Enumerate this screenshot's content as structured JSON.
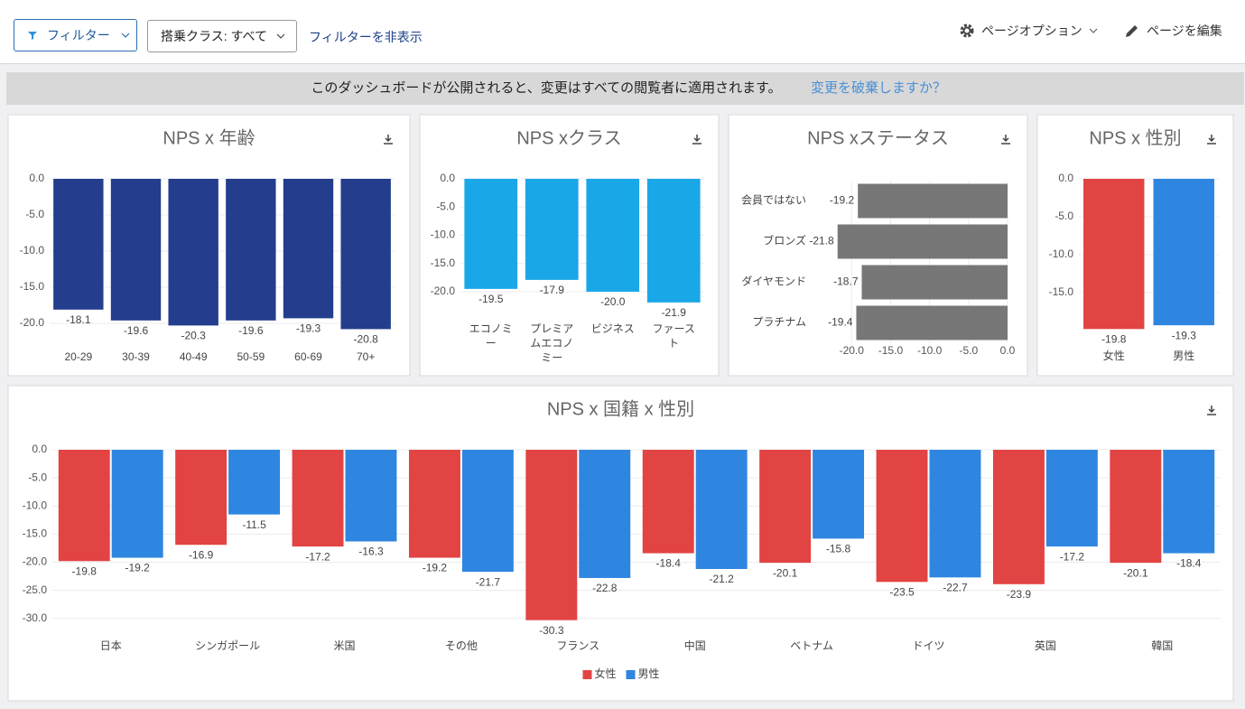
{
  "toolbar": {
    "filter": "フィルター",
    "class_filter": "搭乗クラス: すべて",
    "hide_filters": "フィルターを非表示",
    "page_options": "ページオプション",
    "edit_page": "ページを編集"
  },
  "banner": {
    "message": "このダッシュボードが公開されると、変更はすべての閲覧者に適用されます。",
    "link": "変更を破棄しますか？"
  },
  "chart_data": [
    {
      "type": "bar",
      "title": "NPS x 年齢",
      "categories": [
        "20-29",
        "30-39",
        "40-49",
        "50-59",
        "60-69",
        "70+"
      ],
      "values": [
        -18.1,
        -19.6,
        -20.3,
        -19.6,
        -19.3,
        -20.8
      ],
      "color": "#243d8c",
      "ylim": [
        -21,
        0
      ],
      "yticks": [
        {
          "value": 0,
          "label": "0.0"
        },
        {
          "value": -5,
          "label": "-5.0"
        },
        {
          "value": -10,
          "label": "-10.0"
        },
        {
          "value": -15,
          "label": "-15.0"
        },
        {
          "value": -20,
          "label": "-20.0"
        }
      ],
      "grid": true
    },
    {
      "type": "bar",
      "title": "NPS xクラス",
      "categories": [
        "エコノミー",
        "プレミアムエコノミー",
        "ビジネス",
        "ファースト"
      ],
      "values": [
        -19.5,
        -17.9,
        -20,
        -21.9
      ],
      "value_labels": [
        "-19.5",
        "-17.9",
        "-20.0",
        "-21.9"
      ],
      "color": "#1aa7e8",
      "ylim": [
        -22,
        0
      ],
      "yticks": [
        {
          "value": 0,
          "label": "0.0"
        },
        {
          "value": -5,
          "label": "-5.0"
        },
        {
          "value": -10,
          "label": "-10.0"
        },
        {
          "value": -15,
          "label": "-15.0"
        },
        {
          "value": -20,
          "label": "-20.0"
        }
      ],
      "grid": true
    },
    {
      "type": "barh",
      "title": "NPS xステータス",
      "categories": [
        "会員ではない",
        "ブロンズ",
        "ダイヤモンド",
        "プラチナム"
      ],
      "values": [
        -19.2,
        -21.8,
        -18.7,
        -19.4
      ],
      "color": "#777777",
      "xlim": [
        -22,
        0
      ],
      "xticks": [
        {
          "value": -20,
          "label": "-20.0"
        },
        {
          "value": -15,
          "label": "-15.0"
        },
        {
          "value": -10,
          "label": "-10.0"
        },
        {
          "value": -5,
          "label": "-5.0"
        },
        {
          "value": 0,
          "label": "0.0"
        }
      ],
      "grid": true
    },
    {
      "type": "bar",
      "title": "NPS x 性別",
      "categories": [
        "女性",
        "男性"
      ],
      "values": [
        -19.8,
        -19.3
      ],
      "colors": [
        "#e24343",
        "#2e86e0"
      ],
      "ylim": [
        -20,
        0
      ],
      "yticks": [
        {
          "value": 0,
          "label": "0.0"
        },
        {
          "value": -5,
          "label": "-5.0"
        },
        {
          "value": -10,
          "label": "-10.0"
        },
        {
          "value": -15,
          "label": "-15.0"
        }
      ],
      "grid": true
    },
    {
      "type": "grouped_bar",
      "title": "NPS x 国籍 x 性別",
      "categories": [
        "日本",
        "シンガポール",
        "米国",
        "その他",
        "フランス",
        "中国",
        "ベトナム",
        "ドイツ",
        "英国",
        "韓国"
      ],
      "series": [
        {
          "name": "女性",
          "color": "#e24343",
          "values": [
            -19.8,
            -16.9,
            -17.2,
            -19.2,
            -30.3,
            -18.4,
            -20.1,
            -23.5,
            -23.9,
            -20.1
          ]
        },
        {
          "name": "男性",
          "color": "#2e86e0",
          "values": [
            -19.2,
            -11.5,
            -16.3,
            -21.7,
            -22.8,
            -21.2,
            -15.8,
            -22.7,
            -17.2,
            -18.4
          ]
        }
      ],
      "ylim": [
        -31,
        0
      ],
      "yticks": [
        {
          "value": 0,
          "label": "0.0"
        },
        {
          "value": -5,
          "label": "-5.0"
        },
        {
          "value": -10,
          "label": "-10.0"
        },
        {
          "value": -15,
          "label": "-15.0"
        },
        {
          "value": -20,
          "label": "-20.0"
        },
        {
          "value": -25,
          "label": "-25.0"
        },
        {
          "value": -30,
          "label": "-30.0"
        }
      ],
      "grid": true,
      "legend": "bottom"
    }
  ]
}
